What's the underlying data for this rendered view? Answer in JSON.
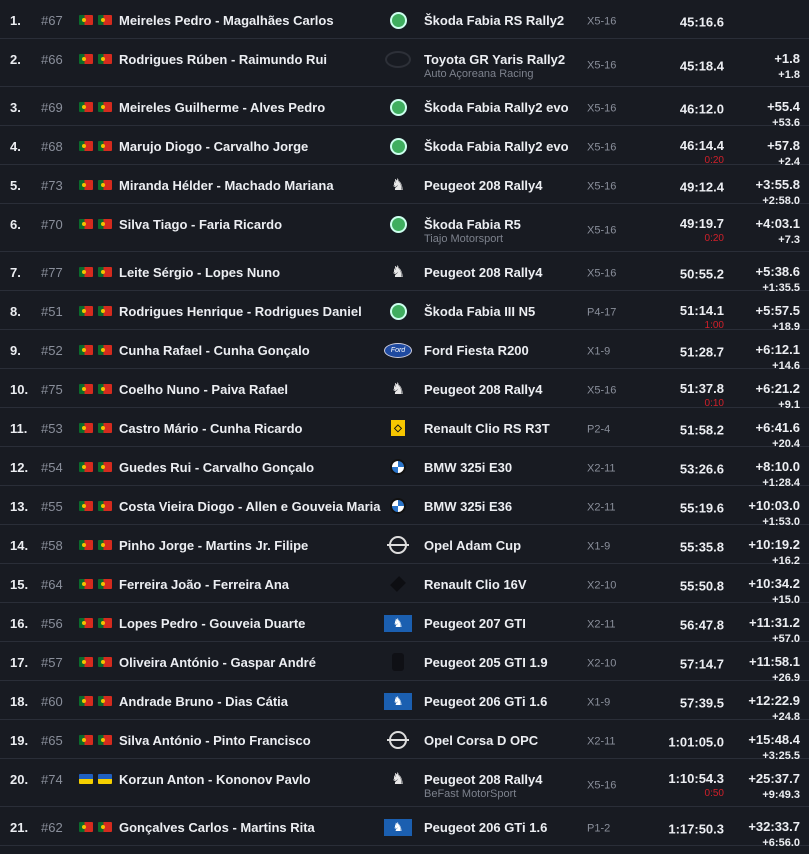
{
  "colors": {
    "background": "#181b22",
    "penalty": "#d0202a",
    "muted": "#8a8f9b"
  },
  "results": [
    {
      "pos": "1.",
      "num": "#67",
      "flags": [
        "portugal",
        "portugal"
      ],
      "crew": "Meireles Pedro - Magalhães Carlos",
      "logo": "skoda",
      "car": "Škoda Fabia RS Rally2",
      "team": "",
      "cls": "X5-16",
      "time": "45:16.6",
      "penalty": "",
      "diff": "",
      "gap": ""
    },
    {
      "pos": "2.",
      "num": "#66",
      "flags": [
        "portugal",
        "portugal"
      ],
      "crew": "Rodrigues Rúben - Raimundo Rui",
      "logo": "toyota",
      "car": "Toyota GR Yaris Rally2",
      "team": "Auto Açoreana Racing",
      "cls": "X5-16",
      "time": "45:18.4",
      "penalty": "",
      "diff": "+1.8",
      "gap": "+1.8"
    },
    {
      "pos": "3.",
      "num": "#69",
      "flags": [
        "portugal",
        "portugal"
      ],
      "crew": "Meireles Guilherme - Alves Pedro",
      "logo": "skoda",
      "car": "Škoda Fabia Rally2 evo",
      "team": "",
      "cls": "X5-16",
      "time": "46:12.0",
      "penalty": "",
      "diff": "+55.4",
      "gap": "+53.6"
    },
    {
      "pos": "4.",
      "num": "#68",
      "flags": [
        "portugal",
        "portugal"
      ],
      "crew": "Marujo Diogo - Carvalho Jorge",
      "logo": "skoda",
      "car": "Škoda Fabia Rally2 evo",
      "team": "",
      "cls": "X5-16",
      "time": "46:14.4",
      "penalty": "0:20",
      "diff": "+57.8",
      "gap": "+2.4"
    },
    {
      "pos": "5.",
      "num": "#73",
      "flags": [
        "portugal",
        "portugal"
      ],
      "crew": "Miranda Hélder - Machado Mariana",
      "logo": "peugeot",
      "car": "Peugeot 208 Rally4",
      "team": "",
      "cls": "X5-16",
      "time": "49:12.4",
      "penalty": "",
      "diff": "+3:55.8",
      "gap": "+2:58.0"
    },
    {
      "pos": "6.",
      "num": "#70",
      "flags": [
        "portugal",
        "portugal"
      ],
      "crew": "Silva Tiago - Faria Ricardo",
      "logo": "skoda",
      "car": "Škoda Fabia R5",
      "team": "Tiajo Motorsport",
      "cls": "X5-16",
      "time": "49:19.7",
      "penalty": "0:20",
      "diff": "+4:03.1",
      "gap": "+7.3"
    },
    {
      "pos": "7.",
      "num": "#77",
      "flags": [
        "portugal",
        "portugal"
      ],
      "crew": "Leite Sérgio - Lopes Nuno",
      "logo": "peugeot",
      "car": "Peugeot 208 Rally4",
      "team": "",
      "cls": "X5-16",
      "time": "50:55.2",
      "penalty": "",
      "diff": "+5:38.6",
      "gap": "+1:35.5"
    },
    {
      "pos": "8.",
      "num": "#51",
      "flags": [
        "portugal",
        "portugal"
      ],
      "crew": "Rodrigues Henrique - Rodrigues Daniel",
      "logo": "skoda",
      "car": "Škoda Fabia III N5",
      "team": "",
      "cls": "P4-17",
      "time": "51:14.1",
      "penalty": "1:00",
      "diff": "+5:57.5",
      "gap": "+18.9"
    },
    {
      "pos": "9.",
      "num": "#52",
      "flags": [
        "portugal",
        "portugal"
      ],
      "crew": "Cunha Rafael - Cunha Gonçalo",
      "logo": "ford",
      "car": "Ford Fiesta R200",
      "team": "",
      "cls": "X1-9",
      "time": "51:28.7",
      "penalty": "",
      "diff": "+6:12.1",
      "gap": "+14.6"
    },
    {
      "pos": "10.",
      "num": "#75",
      "flags": [
        "portugal",
        "portugal"
      ],
      "crew": "Coelho Nuno - Paiva Rafael",
      "logo": "peugeot",
      "car": "Peugeot 208 Rally4",
      "team": "",
      "cls": "X5-16",
      "time": "51:37.8",
      "penalty": "0:10",
      "diff": "+6:21.2",
      "gap": "+9.1"
    },
    {
      "pos": "11.",
      "num": "#53",
      "flags": [
        "portugal",
        "portugal"
      ],
      "crew": "Castro Mário - Cunha Ricardo",
      "logo": "renault",
      "car": "Renault Clio RS R3T",
      "team": "",
      "cls": "P2-4",
      "time": "51:58.2",
      "penalty": "",
      "diff": "+6:41.6",
      "gap": "+20.4"
    },
    {
      "pos": "12.",
      "num": "#54",
      "flags": [
        "portugal",
        "portugal"
      ],
      "crew": "Guedes Rui - Carvalho Gonçalo",
      "logo": "bmw",
      "car": "BMW 325i E30",
      "team": "",
      "cls": "X2-11",
      "time": "53:26.6",
      "penalty": "",
      "diff": "+8:10.0",
      "gap": "+1:28.4"
    },
    {
      "pos": "13.",
      "num": "#55",
      "flags": [
        "portugal",
        "portugal"
      ],
      "crew": "Costa Vieira Diogo - Allen e Gouveia Maria",
      "logo": "bmw",
      "car": "BMW 325i E36",
      "team": "",
      "cls": "X2-11",
      "time": "55:19.6",
      "penalty": "",
      "diff": "+10:03.0",
      "gap": "+1:53.0"
    },
    {
      "pos": "14.",
      "num": "#58",
      "flags": [
        "portugal",
        "portugal"
      ],
      "crew": "Pinho Jorge - Martins Jr. Filipe",
      "logo": "opel",
      "car": "Opel Adam Cup",
      "team": "",
      "cls": "X1-9",
      "time": "55:35.8",
      "penalty": "",
      "diff": "+10:19.2",
      "gap": "+16.2"
    },
    {
      "pos": "15.",
      "num": "#64",
      "flags": [
        "portugal",
        "portugal"
      ],
      "crew": "Ferreira João - Ferreira Ana",
      "logo": "renault-dark",
      "car": "Renault Clio 16V",
      "team": "",
      "cls": "X2-10",
      "time": "55:50.8",
      "penalty": "",
      "diff": "+10:34.2",
      "gap": "+15.0"
    },
    {
      "pos": "16.",
      "num": "#56",
      "flags": [
        "portugal",
        "portugal"
      ],
      "crew": "Lopes Pedro - Gouveia Duarte",
      "logo": "peugeot-box",
      "car": "Peugeot 207 GTI",
      "team": "",
      "cls": "X2-11",
      "time": "56:47.8",
      "penalty": "",
      "diff": "+11:31.2",
      "gap": "+57.0"
    },
    {
      "pos": "17.",
      "num": "#57",
      "flags": [
        "portugal",
        "portugal"
      ],
      "crew": "Oliveira António - Gaspar André",
      "logo": "dark",
      "car": "Peugeot 205 GTI 1.9",
      "team": "",
      "cls": "X2-10",
      "time": "57:14.7",
      "penalty": "",
      "diff": "+11:58.1",
      "gap": "+26.9"
    },
    {
      "pos": "18.",
      "num": "#60",
      "flags": [
        "portugal",
        "portugal"
      ],
      "crew": "Andrade Bruno - Dias Cátia",
      "logo": "peugeot-box",
      "car": "Peugeot 206 GTi 1.6",
      "team": "",
      "cls": "X1-9",
      "time": "57:39.5",
      "penalty": "",
      "diff": "+12:22.9",
      "gap": "+24.8"
    },
    {
      "pos": "19.",
      "num": "#65",
      "flags": [
        "portugal",
        "portugal"
      ],
      "crew": "Silva António - Pinto Francisco",
      "logo": "opel",
      "car": "Opel Corsa D OPC",
      "team": "",
      "cls": "X2-11",
      "time": "1:01:05.0",
      "penalty": "",
      "diff": "+15:48.4",
      "gap": "+3:25.5"
    },
    {
      "pos": "20.",
      "num": "#74",
      "flags": [
        "ukraine",
        "ukraine"
      ],
      "crew": "Korzun Anton - Kononov Pavlo",
      "logo": "peugeot",
      "car": "Peugeot 208 Rally4",
      "team": "BeFast MotorSport",
      "cls": "X5-16",
      "time": "1:10:54.3",
      "penalty": "0:50",
      "diff": "+25:37.7",
      "gap": "+9:49.3"
    },
    {
      "pos": "21.",
      "num": "#62",
      "flags": [
        "portugal",
        "portugal"
      ],
      "crew": "Gonçalves Carlos - Martins Rita",
      "logo": "peugeot-box",
      "car": "Peugeot 206 GTi 1.6",
      "team": "",
      "cls": "P1-2",
      "time": "1:17:50.3",
      "penalty": "",
      "diff": "+32:33.7",
      "gap": "+6:56.0"
    }
  ]
}
